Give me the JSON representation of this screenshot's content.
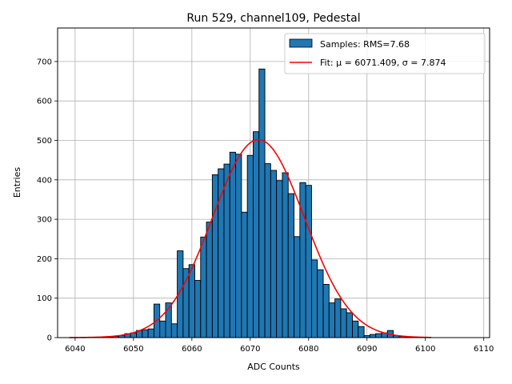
{
  "chart_data": {
    "type": "bar",
    "title": "Run 529, channel109, Pedestal",
    "xlabel": "ADC Counts",
    "ylabel": "Entries",
    "xlim": [
      6037,
      6111
    ],
    "ylim": [
      0,
      785
    ],
    "xticks": [
      6040,
      6050,
      6060,
      6070,
      6080,
      6090,
      6100,
      6110
    ],
    "yticks": [
      0,
      100,
      200,
      300,
      400,
      500,
      600,
      700
    ],
    "grid": true,
    "legend_position": "top-right",
    "bar_color": "#1f77b4",
    "fit_color": "#ff0000",
    "series": [
      {
        "name": "Samples: RMS=7.68",
        "type": "bar",
        "bin_width": 1,
        "x": [
          6044,
          6045,
          6046,
          6047,
          6048,
          6049,
          6050,
          6051,
          6052,
          6053,
          6054,
          6055,
          6056,
          6057,
          6058,
          6059,
          6060,
          6061,
          6062,
          6063,
          6064,
          6065,
          6066,
          6067,
          6068,
          6069,
          6070,
          6071,
          6072,
          6073,
          6074,
          6075,
          6076,
          6077,
          6078,
          6079,
          6080,
          6081,
          6082,
          6083,
          6084,
          6085,
          6086,
          6087,
          6088,
          6089,
          6090,
          6091,
          6092,
          6093,
          6094,
          6095,
          6096,
          6097
        ],
        "values": [
          0,
          1,
          2,
          3,
          5,
          10,
          12,
          18,
          20,
          22,
          85,
          42,
          88,
          35,
          220,
          175,
          185,
          145,
          255,
          293,
          413,
          428,
          440,
          470,
          465,
          318,
          462,
          522,
          681,
          441,
          424,
          398,
          418,
          365,
          256,
          393,
          386,
          197,
          172,
          135,
          88,
          98,
          73,
          63,
          42,
          28,
          5,
          8,
          10,
          12,
          18,
          5,
          3,
          2
        ]
      },
      {
        "name": "Fit: μ = 6071.409, σ = 7.874",
        "type": "line",
        "mu": 6071.409,
        "sigma": 7.874,
        "amplitude": 502,
        "x_range": [
          6039,
          6101
        ]
      }
    ]
  }
}
